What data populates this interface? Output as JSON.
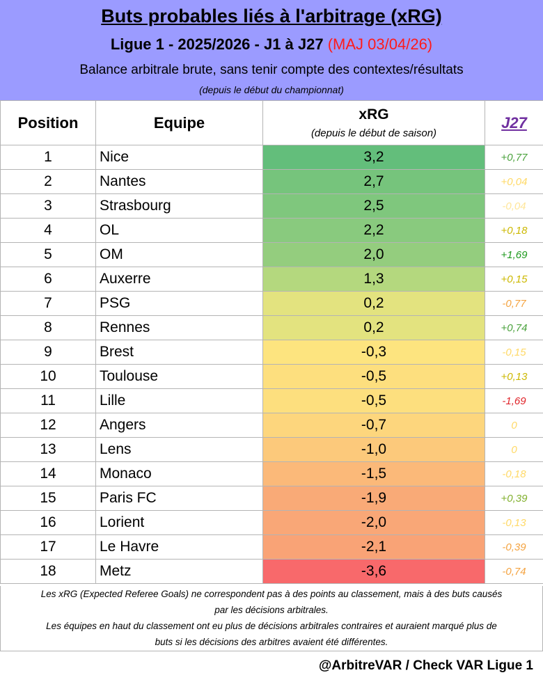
{
  "header": {
    "title": "Buts probables liés à l'arbitrage (xRG)",
    "subtitle_main": "Ligue 1 - 2025/2026 - J1 à J27",
    "subtitle_update": "(MAJ 03/04/26)",
    "description": "Balance arbitrale brute, sans tenir compte des contextes/résultats",
    "since": "(depuis le début du championnat)"
  },
  "columns": {
    "position": "Position",
    "team": "Equipe",
    "xrg": "xRG",
    "xrg_sub": "(depuis le début de saison)",
    "matchday": "J27"
  },
  "colors": {
    "header_bg": "#9b9bff",
    "update_text": "#ff1a1a",
    "matchday_header": "#7030a0"
  },
  "rows": [
    {
      "position": "1",
      "team": "Nice",
      "xrg": "3,2",
      "j27": "+0,77",
      "xrg_color": "#63be7b",
      "j27_color": "#4aa23c"
    },
    {
      "position": "2",
      "team": "Nantes",
      "xrg": "2,7",
      "j27": "+0,04",
      "xrg_color": "#76c47c",
      "j27_color": "#ffd966"
    },
    {
      "position": "3",
      "team": "Strasbourg",
      "xrg": "2,5",
      "j27": "-0,04",
      "xrg_color": "#7fc77d",
      "j27_color": "#ffe699"
    },
    {
      "position": "4",
      "team": "OL",
      "xrg": "2,2",
      "j27": "+0,18",
      "xrg_color": "#89ca7e",
      "j27_color": "#ccb800"
    },
    {
      "position": "5",
      "team": "OM",
      "xrg": "2,0",
      "j27": "+1,69",
      "xrg_color": "#94cd7e",
      "j27_color": "#1f9a1f"
    },
    {
      "position": "6",
      "team": "Auxerre",
      "xrg": "1,3",
      "j27": "+0,15",
      "xrg_color": "#b4d87e",
      "j27_color": "#ccb800"
    },
    {
      "position": "7",
      "team": "PSG",
      "xrg": "0,2",
      "j27": "-0,77",
      "xrg_color": "#e3e37f",
      "j27_color": "#f4a340"
    },
    {
      "position": "8",
      "team": "Rennes",
      "xrg": "0,2",
      "j27": "+0,74",
      "xrg_color": "#e3e37f",
      "j27_color": "#4aa23c"
    },
    {
      "position": "9",
      "team": "Brest",
      "xrg": "-0,3",
      "j27": "-0,15",
      "xrg_color": "#fde47f",
      "j27_color": "#ffd966"
    },
    {
      "position": "10",
      "team": "Toulouse",
      "xrg": "-0,5",
      "j27": "+0,13",
      "xrg_color": "#fddf7e",
      "j27_color": "#ccb800"
    },
    {
      "position": "11",
      "team": "Lille",
      "xrg": "-0,5",
      "j27": "-1,69",
      "xrg_color": "#fddf7e",
      "j27_color": "#e0242a"
    },
    {
      "position": "12",
      "team": "Angers",
      "xrg": "-0,7",
      "j27": "0",
      "xrg_color": "#fdd67d",
      "j27_color": "#ffd966"
    },
    {
      "position": "13",
      "team": "Lens",
      "xrg": "-1,0",
      "j27": "0",
      "xrg_color": "#fcc97b",
      "j27_color": "#ffd966"
    },
    {
      "position": "14",
      "team": "Monaco",
      "xrg": "-1,5",
      "j27": "-0,18",
      "xrg_color": "#fbb979",
      "j27_color": "#ffd966"
    },
    {
      "position": "15",
      "team": "Paris FC",
      "xrg": "-1,9",
      "j27": "+0,39",
      "xrg_color": "#f9aa77",
      "j27_color": "#82b02e"
    },
    {
      "position": "16",
      "team": "Lorient",
      "xrg": "-2,0",
      "j27": "-0,13",
      "xrg_color": "#f9a777",
      "j27_color": "#ffd966"
    },
    {
      "position": "17",
      "team": "Le Havre",
      "xrg": "-2,1",
      "j27": "-0,39",
      "xrg_color": "#f9a376",
      "j27_color": "#f4a340"
    },
    {
      "position": "18",
      "team": "Metz",
      "xrg": "-3,6",
      "j27": "-0,74",
      "xrg_color": "#f8696b",
      "j27_color": "#f4a340"
    }
  ],
  "footnote": {
    "line1": "Les xRG (Expected Referee Goals) ne correspondent pas à des points au classement, mais à des buts causés",
    "line2": "par les décisions arbitrales.",
    "line3": "Les équipes en haut du classement ont eu plus de décisions arbitrales contraires et auraient marqué plus de",
    "line4": "buts si les décisions des arbitres avaient été différentes."
  },
  "credit": "@ArbitreVAR / Check VAR Ligue 1"
}
